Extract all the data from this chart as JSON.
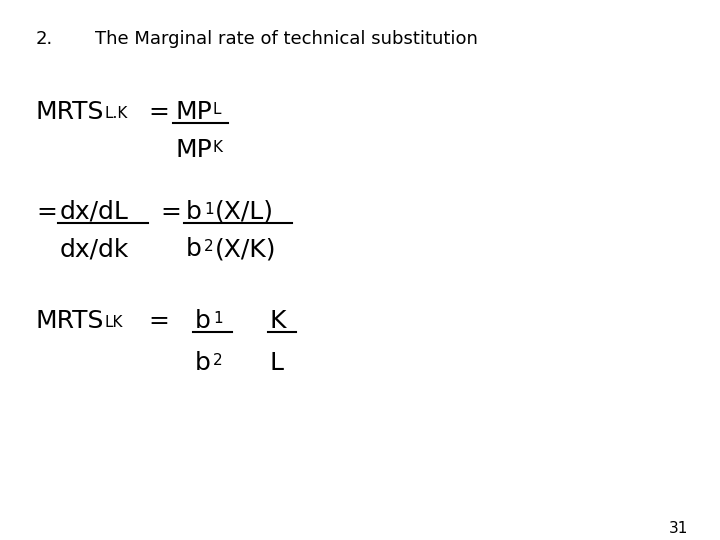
{
  "background_color": "#ffffff",
  "page_number": "31",
  "heading_number": "2.",
  "heading_text": "The Marginal rate of technical substitution",
  "heading_fontsize": 13,
  "body_fontsize": 18,
  "sub_fontsize": 11
}
